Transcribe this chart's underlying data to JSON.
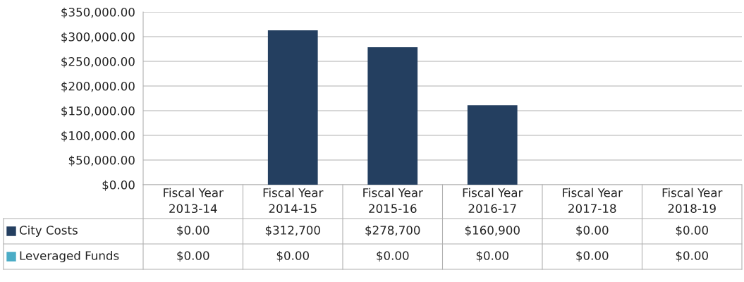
{
  "chart_data": {
    "type": "bar",
    "stacked": true,
    "grid": "y",
    "categories": [
      "Fiscal Year\n2013-14",
      "Fiscal Year\n2014-15",
      "Fiscal Year\n2015-16",
      "Fiscal Year\n2016-17",
      "Fiscal Year\n2017-18",
      "Fiscal Year\n2018-19"
    ],
    "series": [
      {
        "name": "City Costs",
        "color": "#243f60",
        "values": [
          0,
          312700,
          278700,
          160900,
          0,
          0
        ],
        "value_labels": [
          "$0.00",
          "$312,700",
          "$278,700",
          "$160,900",
          "$0.00",
          "$0.00"
        ]
      },
      {
        "name": "Leveraged Funds",
        "color": "#4bacc6",
        "values": [
          0,
          0,
          0,
          0,
          0,
          0
        ],
        "value_labels": [
          "$0.00",
          "$0.00",
          "$0.00",
          "$0.00",
          "$0.00",
          "$0.00"
        ]
      }
    ],
    "ylim": [
      0,
      350000
    ],
    "yticks": [
      {
        "value": 0,
        "label": "$0.00"
      },
      {
        "value": 50000,
        "label": "$50,000.00"
      },
      {
        "value": 100000,
        "label": "$100,000.00"
      },
      {
        "value": 150000,
        "label": "$150,000.00"
      },
      {
        "value": 200000,
        "label": "$200,000.00"
      },
      {
        "value": 250000,
        "label": "$250,000.00"
      },
      {
        "value": 300000,
        "label": "$300,000.00"
      },
      {
        "value": 350000,
        "label": "$350,000.00"
      }
    ]
  }
}
